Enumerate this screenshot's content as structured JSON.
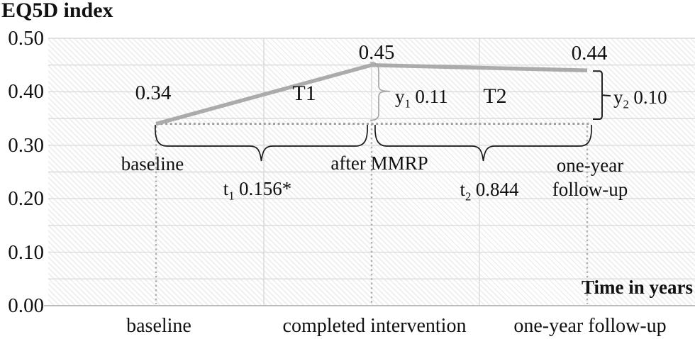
{
  "chart_data": {
    "type": "line",
    "title": "EQ5D index",
    "xlabel": "Time in years",
    "ylabel": "EQ5D index",
    "categories": [
      "baseline",
      "completed intervention",
      "one-year follow-up"
    ],
    "series": [
      {
        "name": "EQ5D index",
        "values": [
          0.34,
          0.45,
          0.44
        ]
      }
    ],
    "point_labels": [
      "0.34",
      "0.45",
      "0.44"
    ],
    "ylim": [
      0.0,
      0.5
    ],
    "y_tick_labels": [
      "0.50",
      "0.40",
      "0.30",
      "0.20",
      "0.10",
      "0.00"
    ],
    "y_tick_values": [
      0.5,
      0.4,
      0.3,
      0.2,
      0.1,
      0.0
    ],
    "gridline_step": 0.05,
    "grid": "on",
    "legend": "none",
    "background_pattern": "diagonal-hatch"
  },
  "annotations": {
    "t1_interval_label": "T1",
    "t2_interval_label": "T2",
    "y1": {
      "sym": "y",
      "sub": "1",
      "value": "0.11"
    },
    "y2": {
      "sym": "y",
      "sub": "2",
      "value": "0.10"
    },
    "t1": {
      "sym": "t",
      "sub": "1",
      "value": "0.156*"
    },
    "t2": {
      "sym": "t",
      "sub": "2",
      "value": "0.844"
    },
    "baseline_label": "baseline",
    "after_mmrp_label": "after MMRP",
    "one_year_line1": "one-year",
    "one_year_line2": "follow-up"
  },
  "colors": {
    "line": "#ababab",
    "gridline": "#d9d9d9",
    "axis": "#bdbdbd",
    "dotted": "#9a9a9a",
    "dropline": "#b0b0b0",
    "faint_dropline": "#dcdcdc",
    "brace": "#1a1a1a",
    "value_brace_gray": "#a6a6a6",
    "text": "#111111"
  }
}
